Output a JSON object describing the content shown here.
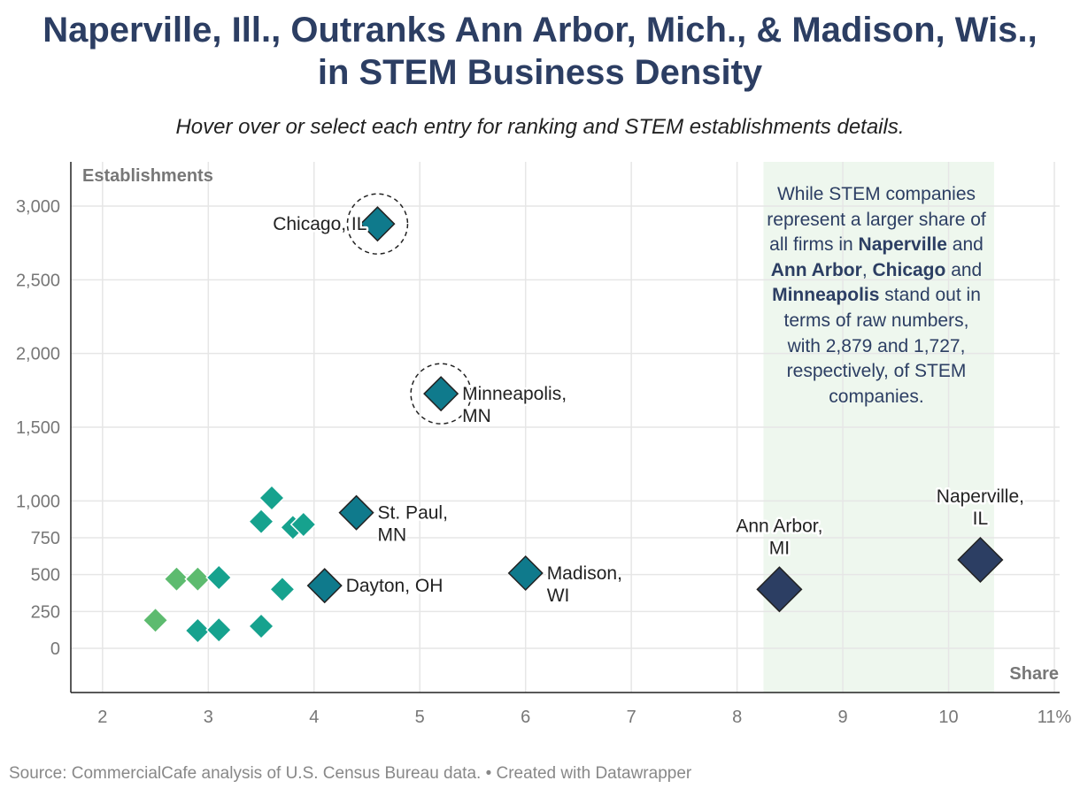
{
  "title_line1": "Naperville, Ill., Outranks Ann Arbor, Mich., & Madison, Wis.,",
  "title_line2": "in STEM Business Density",
  "subtitle": "Hover over or select each entry for ranking and STEM establishments details.",
  "footer": "Source: CommercialCafe analysis of U.S. Census Bureau data. • Created with Datawrapper",
  "annotation": {
    "t1": "While STEM companies represent a larger share of all firms in",
    "b1": "Naperville",
    "t2": "and",
    "b2": "Ann Arbor",
    "t3": ",",
    "b3": "Chicago",
    "t4": "and",
    "b4": "Minneapolis",
    "t5": "stand out in terms of raw numbers, with 2,879 and 1,727, respectively, of STEM companies."
  },
  "colors": {
    "light_green": "#5dbb6f",
    "teal": "#16a28e",
    "dark_teal": "#0f7a8c",
    "navy": "#2c3e63",
    "highlight_band": "#eef7ee"
  },
  "chart_data": {
    "type": "scatter",
    "xlabel": "Share",
    "ylabel": "Establishments",
    "xlim": [
      1.7,
      11.05
    ],
    "ylim": [
      -300,
      3300
    ],
    "x_ticks": [
      2,
      3,
      4,
      5,
      6,
      7,
      8,
      9,
      10,
      11
    ],
    "x_tick_labels": [
      "2",
      "3",
      "4",
      "5",
      "6",
      "7",
      "8",
      "9",
      "10",
      "11%"
    ],
    "y_ticks": [
      0,
      250,
      500,
      750,
      1000,
      1500,
      2000,
      2500,
      3000
    ],
    "y_tick_labels": [
      "0",
      "250",
      "500",
      "750",
      "1,000",
      "1,500",
      "2,000",
      "2,500",
      "3,000"
    ],
    "grid": true,
    "highlight_range_x": [
      8.25,
      10.43
    ],
    "points": [
      {
        "x": 2.5,
        "y": 190,
        "color": "light_green",
        "size": "s"
      },
      {
        "x": 2.7,
        "y": 470,
        "color": "light_green",
        "size": "s"
      },
      {
        "x": 2.9,
        "y": 470,
        "color": "light_green",
        "size": "s"
      },
      {
        "x": 2.9,
        "y": 120,
        "color": "teal",
        "size": "s"
      },
      {
        "x": 3.1,
        "y": 480,
        "color": "teal",
        "size": "s"
      },
      {
        "x": 3.1,
        "y": 125,
        "color": "teal",
        "size": "s"
      },
      {
        "x": 3.5,
        "y": 150,
        "color": "teal",
        "size": "s"
      },
      {
        "x": 3.5,
        "y": 860,
        "color": "teal",
        "size": "s"
      },
      {
        "x": 3.6,
        "y": 1020,
        "color": "teal",
        "size": "s"
      },
      {
        "x": 3.7,
        "y": 400,
        "color": "teal",
        "size": "s"
      },
      {
        "x": 3.8,
        "y": 820,
        "color": "teal",
        "size": "s"
      },
      {
        "x": 3.9,
        "y": 840,
        "color": "teal",
        "size": "s"
      },
      {
        "x": 4.1,
        "y": 425,
        "color": "dark_teal",
        "size": "m",
        "label": [
          "Dayton, OH"
        ],
        "label_pos": "right"
      },
      {
        "x": 4.4,
        "y": 920,
        "color": "dark_teal",
        "size": "m",
        "label": [
          "St. Paul,",
          "MN"
        ],
        "label_pos": "right"
      },
      {
        "x": 4.6,
        "y": 2879,
        "color": "dark_teal",
        "size": "m",
        "label": [
          "Chicago, IL"
        ],
        "label_pos": "left",
        "ring": true
      },
      {
        "x": 5.2,
        "y": 1727,
        "color": "dark_teal",
        "size": "m",
        "label": [
          "Minneapolis,",
          "MN"
        ],
        "label_pos": "right",
        "ring": true
      },
      {
        "x": 6.0,
        "y": 510,
        "color": "dark_teal",
        "size": "m",
        "label": [
          "Madison,",
          "WI"
        ],
        "label_pos": "right"
      },
      {
        "x": 8.4,
        "y": 400,
        "color": "navy",
        "size": "l",
        "label": [
          "Ann Arbor,",
          "MI"
        ],
        "label_pos": "top"
      },
      {
        "x": 10.3,
        "y": 600,
        "color": "navy",
        "size": "l",
        "label": [
          "Naperville,",
          "IL"
        ],
        "label_pos": "top"
      }
    ]
  }
}
